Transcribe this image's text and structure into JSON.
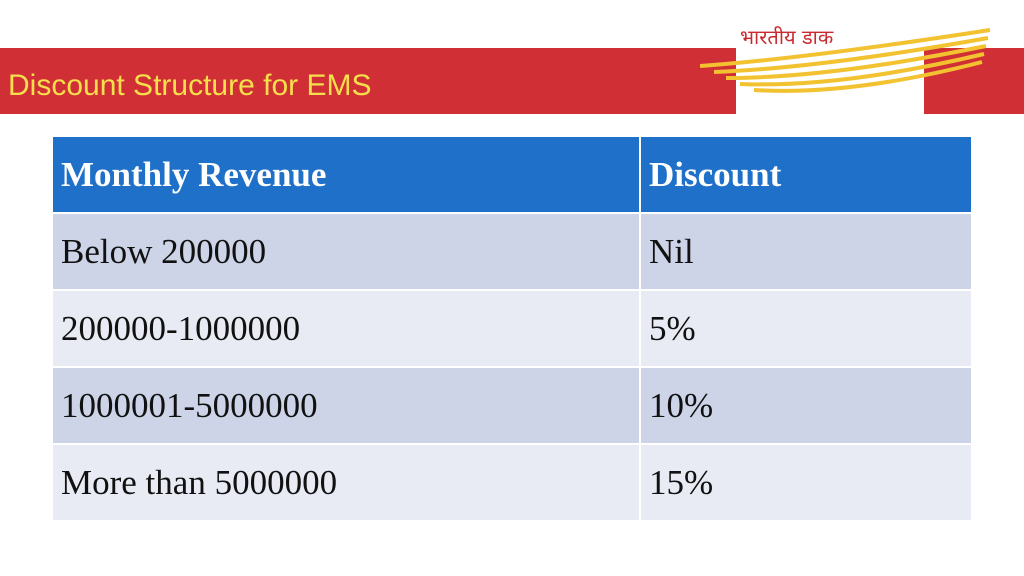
{
  "slide": {
    "title": "Discount Structure for EMS",
    "logo_text": "भारतीय डाक",
    "colors": {
      "banner": "#d03035",
      "title_text": "#f6df4c",
      "table_header": "#1e70c8",
      "row_dark": "#cdd4e8",
      "row_light": "#e8ebf4"
    }
  },
  "table": {
    "headers": [
      "Monthly Revenue",
      "Discount"
    ],
    "rows": [
      [
        "Below 200000",
        "Nil"
      ],
      [
        "200000-1000000",
        "5%"
      ],
      [
        "1000001-5000000",
        "10%"
      ],
      [
        "More than 5000000",
        "15%"
      ]
    ]
  }
}
